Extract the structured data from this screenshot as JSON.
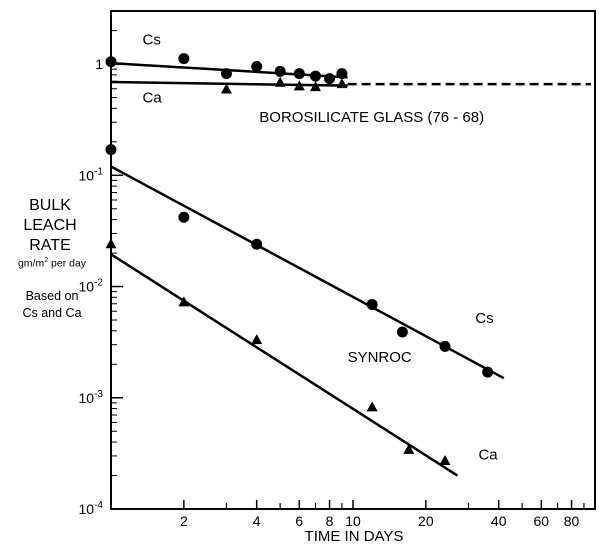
{
  "chart_data": {
    "type": "scatter",
    "x_scale": "log",
    "y_scale": "log",
    "xlim": [
      1,
      100
    ],
    "ylim": [
      0.0001,
      3
    ],
    "grid": false,
    "xlabel": "TIME IN DAYS",
    "ylabel": {
      "line1": "BULK",
      "line2": "LEACH",
      "line3": "RATE",
      "units_main": "gm/m",
      "units_sup": "2",
      "units_tail": " per day",
      "note_line1": "Based on",
      "note_line2": "Cs and Ca"
    },
    "x_ticks": [
      {
        "value": 2,
        "label": "2"
      },
      {
        "value": 4,
        "label": "4"
      },
      {
        "value": 6,
        "label": "6"
      },
      {
        "value": 8,
        "label": "8"
      },
      {
        "value": 10,
        "label": "10"
      },
      {
        "value": 20,
        "label": "20"
      },
      {
        "value": 40,
        "label": "40"
      },
      {
        "value": 60,
        "label": "60"
      },
      {
        "value": 80,
        "label": "80"
      }
    ],
    "x_minor_ticks": [
      3,
      5,
      7,
      9,
      30,
      50,
      70,
      90
    ],
    "y_ticks": [
      {
        "value": 1,
        "label": "1",
        "exp": ""
      },
      {
        "value": 0.1,
        "label": "10",
        "exp": "-1"
      },
      {
        "value": 0.01,
        "label": "10",
        "exp": "-2"
      },
      {
        "value": 0.001,
        "label": "10",
        "exp": "-3"
      },
      {
        "value": 0.0001,
        "label": "10",
        "exp": "-4"
      }
    ],
    "series": [
      {
        "group": "borosilicate",
        "element": "Cs",
        "marker": "circle",
        "x": [
          1,
          2,
          3,
          4,
          5,
          6,
          7,
          8,
          9
        ],
        "y": [
          1.05,
          1.12,
          0.82,
          0.95,
          0.86,
          0.82,
          0.78,
          0.74,
          0.82
        ],
        "fit": {
          "x": [
            1,
            9.5
          ],
          "y": [
            1.02,
            0.76
          ]
        }
      },
      {
        "group": "borosilicate",
        "element": "Ca",
        "marker": "triangle",
        "x": [
          3,
          5,
          6,
          7,
          9
        ],
        "y": [
          0.59,
          0.68,
          0.63,
          0.62,
          0.66
        ],
        "fit": {
          "x": [
            1,
            9.5
          ],
          "y": [
            0.69,
            0.64
          ]
        }
      },
      {
        "group": "synroc",
        "element": "Cs",
        "marker": "circle",
        "x": [
          1,
          2,
          4,
          12,
          16,
          24,
          36
        ],
        "y": [
          0.17,
          0.042,
          0.024,
          0.0069,
          0.0039,
          0.0029,
          0.0017
        ],
        "fit": {
          "x": [
            1,
            42
          ],
          "y": [
            0.12,
            0.0015
          ]
        }
      },
      {
        "group": "synroc",
        "element": "Ca",
        "marker": "triangle",
        "x": [
          1,
          2,
          4,
          12,
          17,
          24
        ],
        "y": [
          0.024,
          0.0072,
          0.0033,
          0.00082,
          0.00034,
          0.00027
        ],
        "fit": {
          "x": [
            1,
            27
          ],
          "y": [
            0.0195,
            0.0002
          ]
        }
      }
    ],
    "annotations": [
      {
        "text": "Cs",
        "x": 1.35,
        "y": 1.5
      },
      {
        "text": "Ca",
        "x": 1.35,
        "y": 0.45
      },
      {
        "text": "BOROSILICATE   GLASS    (76 - 68)",
        "x": 4.1,
        "y": 0.3
      },
      {
        "text": "SYNROC",
        "x": 9.5,
        "y": 0.0021
      },
      {
        "text": "Cs",
        "x": 32,
        "y": 0.0047
      },
      {
        "text": "Ca",
        "x": 33,
        "y": 0.00028
      }
    ],
    "extension": {
      "style": "dashed",
      "y": 0.66,
      "x_from": 9.5,
      "x_to": 100
    }
  }
}
